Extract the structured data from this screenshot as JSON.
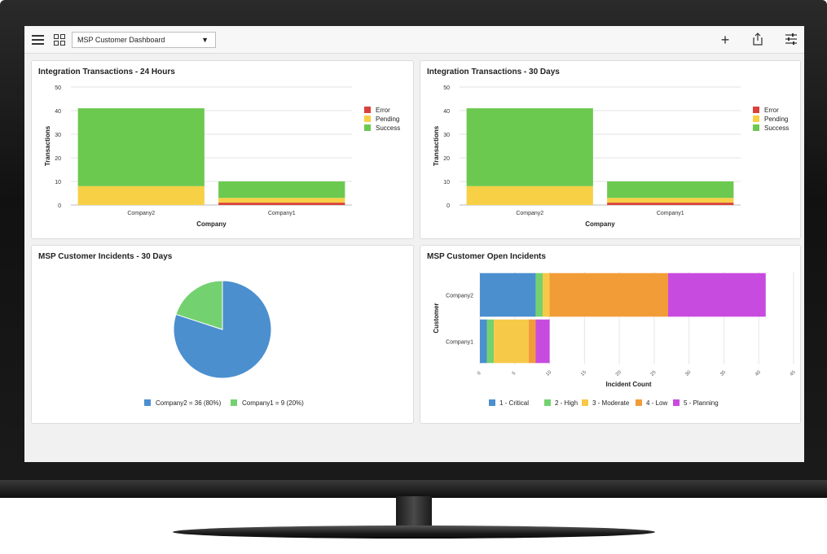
{
  "toolbar": {
    "dashboard_selected": "MSP Customer Dashboard"
  },
  "panels": {
    "tx24": {
      "title": "Integration Transactions - 24 Hours"
    },
    "tx30": {
      "title": "Integration Transactions - 30 Days"
    },
    "incidents30": {
      "title": "MSP Customer Incidents - 30 Days"
    },
    "open_incidents": {
      "title": "MSP Customer Open Incidents"
    }
  },
  "chart_data": [
    {
      "type": "bar",
      "stacked": true,
      "title": "Integration Transactions - 24 Hours",
      "xlabel": "Company",
      "ylabel": "Transactions",
      "categories": [
        "Company2",
        "Company1"
      ],
      "series": [
        {
          "name": "Error",
          "color": "#d9423a",
          "values": [
            0,
            1
          ]
        },
        {
          "name": "Pending",
          "color": "#f7d046",
          "values": [
            8,
            2
          ]
        },
        {
          "name": "Success",
          "color": "#6cc94f",
          "values": [
            33,
            7
          ]
        }
      ],
      "ylim": [
        0,
        50
      ],
      "yticks": [
        0,
        10,
        20,
        30,
        40,
        50
      ],
      "grid": true,
      "legend": "right"
    },
    {
      "type": "bar",
      "stacked": true,
      "title": "Integration Transactions - 30 Days",
      "xlabel": "Company",
      "ylabel": "Transactions",
      "categories": [
        "Company2",
        "Company1"
      ],
      "series": [
        {
          "name": "Error",
          "color": "#d9423a",
          "values": [
            0,
            1
          ]
        },
        {
          "name": "Pending",
          "color": "#f7d046",
          "values": [
            8,
            2
          ]
        },
        {
          "name": "Success",
          "color": "#6cc94f",
          "values": [
            33,
            7
          ]
        }
      ],
      "ylim": [
        0,
        50
      ],
      "yticks": [
        0,
        10,
        20,
        30,
        40,
        50
      ],
      "grid": true,
      "legend": "right"
    },
    {
      "type": "pie",
      "title": "MSP Customer Incidents - 30 Days",
      "slices": [
        {
          "label": "Company2 = 36 (80%)",
          "value": 36,
          "color": "#4b8fcf"
        },
        {
          "label": "Company1 = 9 (20%)",
          "value": 9,
          "color": "#74d170"
        }
      ],
      "legend": "bottom"
    },
    {
      "type": "bar",
      "orientation": "horizontal",
      "stacked": true,
      "title": "MSP Customer Open Incidents",
      "xlabel": "Incident Count",
      "ylabel": "Customer",
      "categories": [
        "Company2",
        "Company1"
      ],
      "series": [
        {
          "name": "1 - Critical",
          "color": "#4b8fcf",
          "values": [
            8,
            1
          ]
        },
        {
          "name": "2 - High",
          "color": "#74d170",
          "values": [
            1,
            1
          ]
        },
        {
          "name": "3 - Moderate",
          "color": "#f7c948",
          "values": [
            1,
            5
          ]
        },
        {
          "name": "4 - Low",
          "color": "#f29c38",
          "values": [
            17,
            1
          ]
        },
        {
          "name": "5 - Planning",
          "color": "#c84be0",
          "values": [
            14,
            2
          ]
        }
      ],
      "xlim": [
        0,
        45
      ],
      "xticks": [
        0,
        5,
        10,
        15,
        20,
        25,
        30,
        35,
        40,
        45
      ],
      "grid": true,
      "legend": "bottom"
    }
  ]
}
